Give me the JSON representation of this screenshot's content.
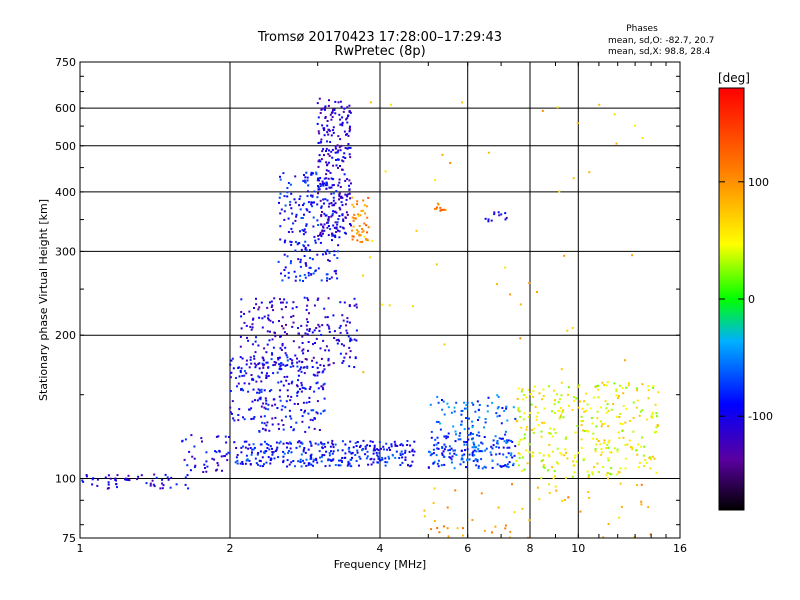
{
  "chart_data": {
    "type": "scatter",
    "title": "Tromsø 20170423 17:28:00–17:29:43",
    "subtitle": "RwPretec (8p)",
    "phases_title": "Phases",
    "phases_line1": "mean, sd,O: -82.7, 20.7",
    "phases_line2": "mean, sd,X:  98.8, 28.4",
    "xlabel": "Frequency [MHz]",
    "ylabel": "Stationary phase Virtual Height [km]",
    "x_scale": "log",
    "y_scale": "log",
    "xlim": [
      1,
      16
    ],
    "ylim": [
      75,
      750
    ],
    "x_ticks": [
      1,
      2,
      4,
      6,
      8,
      10,
      16
    ],
    "x_tick_labels": [
      "1",
      "2",
      "4",
      "6",
      "8",
      "10",
      "16"
    ],
    "y_ticks": [
      75,
      100,
      200,
      300,
      400,
      500,
      600,
      750
    ],
    "y_tick_labels": [
      "75",
      "100",
      "200",
      "300",
      "400",
      "500",
      "600",
      "750"
    ],
    "grid_x": [
      2,
      4,
      6,
      8,
      10
    ],
    "grid_y": [
      100,
      200,
      300,
      400,
      500,
      600
    ],
    "grid": true,
    "colorbar": {
      "label": "[deg]",
      "range": [
        -180,
        180
      ],
      "ticks": [
        -100,
        0,
        100
      ],
      "tick_labels": [
        "-100",
        "0",
        "100"
      ]
    },
    "clusters": [
      {
        "x_range": [
          1.0,
          1.65
        ],
        "y_range": [
          95,
          102
        ],
        "phase": -105,
        "n": 55
      },
      {
        "x_range": [
          1.6,
          2.0
        ],
        "y_range": [
          102,
          125
        ],
        "phase": -100,
        "n": 45
      },
      {
        "x_range": [
          2.0,
          3.1
        ],
        "y_range": [
          125,
          180
        ],
        "phase": -95,
        "n": 240
      },
      {
        "x_range": [
          2.1,
          3.6
        ],
        "y_range": [
          170,
          240
        ],
        "phase": -110,
        "n": 240
      },
      {
        "x_range": [
          2.5,
          3.3
        ],
        "y_range": [
          260,
          440
        ],
        "phase": -90,
        "n": 220
      },
      {
        "x_range": [
          3.0,
          3.5
        ],
        "y_range": [
          320,
          640
        ],
        "phase": -110,
        "n": 260
      },
      {
        "x_range": [
          3.5,
          3.8
        ],
        "y_range": [
          310,
          390
        ],
        "phase": 110,
        "n": 45
      },
      {
        "x_range": [
          2.0,
          4.7
        ],
        "y_range": [
          106,
          120
        ],
        "phase": -85,
        "n": 320
      },
      {
        "x_range": [
          5.0,
          7.5
        ],
        "y_range": [
          105,
          125
        ],
        "phase": -75,
        "n": 180
      },
      {
        "x_range": [
          5.0,
          7.5
        ],
        "y_range": [
          125,
          150
        ],
        "phase": -60,
        "n": 70
      },
      {
        "x_range": [
          7.5,
          14.5
        ],
        "y_range": [
          100,
          160
        ],
        "phase": 50,
        "n": 320
      },
      {
        "x_range": [
          4.8,
          14.0
        ],
        "y_range": [
          75,
          98
        ],
        "phase": 90,
        "n": 55
      },
      {
        "x_range": [
          3.5,
          14.0
        ],
        "y_range": [
          160,
          650
        ],
        "phase": 80,
        "n": 45
      },
      {
        "x_range": [
          6.4,
          7.2
        ],
        "y_range": [
          340,
          365
        ],
        "phase": -110,
        "n": 12
      },
      {
        "x_range": [
          5.1,
          5.4
        ],
        "y_range": [
          365,
          380
        ],
        "phase": 120,
        "n": 10
      }
    ]
  }
}
